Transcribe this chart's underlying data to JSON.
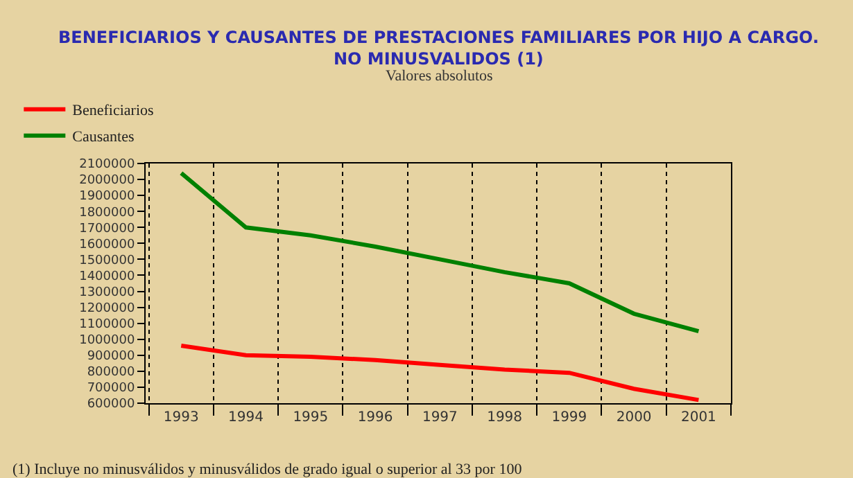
{
  "chart_data": {
    "type": "line",
    "title": "BENEFICIARIOS Y CAUSANTES DE PRESTACIONES FAMILIARES POR HIJO A CARGO.\nNO MINUSVALIDOS (1)",
    "subtitle": "Valores absolutos",
    "categories": [
      "1993",
      "1994",
      "1995",
      "1996",
      "1997",
      "1998",
      "1999",
      "2000",
      "2001"
    ],
    "series": [
      {
        "name": "Beneficiarios",
        "color": "#ff0000",
        "values": [
          960000,
          900000,
          890000,
          870000,
          840000,
          810000,
          790000,
          690000,
          620000
        ]
      },
      {
        "name": "Causantes",
        "color": "#008000",
        "values": [
          2040000,
          1700000,
          1650000,
          1580000,
          1500000,
          1420000,
          1350000,
          1160000,
          1050000
        ]
      }
    ],
    "ylim": [
      600000,
      2100000
    ],
    "yticks": [
      600000,
      700000,
      800000,
      900000,
      1000000,
      1100000,
      1200000,
      1300000,
      1400000,
      1500000,
      1600000,
      1700000,
      1800000,
      1900000,
      2000000,
      2100000
    ],
    "grid": "x",
    "legend": "top left",
    "marker": "none",
    "line_style": "solid",
    "annotations": [
      "(1) Incluye no minusválidos y minusválidos de grado igual o superior al 33 por 100"
    ]
  }
}
